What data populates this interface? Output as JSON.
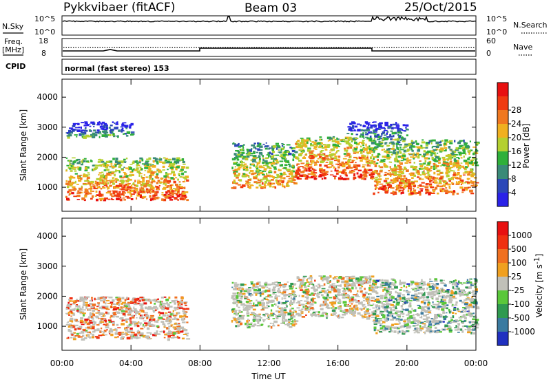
{
  "header": {
    "station": "Pykkvibaer (fitACF)",
    "beam": "Beam 03",
    "date": "25/Oct/2015"
  },
  "strips": {
    "nsky_label": "N.Sky",
    "nsky_ticks": [
      "10^5",
      "10^0"
    ],
    "nsearch_label": "N.Search",
    "nsearch_ticks": [
      "10^5",
      "10^0"
    ],
    "freq_label_1": "Freq.",
    "freq_label_2": "[MHz]",
    "freq_ticks": [
      "18",
      "8"
    ],
    "nave_label": "Nave",
    "nave_ticks": [
      "60",
      "0"
    ],
    "cpid_label": "CPID",
    "cpid_value": "normal (fast stereo) 153"
  },
  "chart_data": [
    {
      "type": "heatmap",
      "title": "",
      "quantity": "Power",
      "xlabel": "",
      "ylabel": "Slant Range [km]",
      "xlim_hours": [
        0,
        24
      ],
      "ylim_km": [
        200,
        4600
      ],
      "ytick_labels": [
        "1000",
        "2000",
        "3000",
        "4000"
      ],
      "ytick_values": [
        1000,
        2000,
        3000,
        4000
      ],
      "colorbar": {
        "label": "Power [dB]",
        "tick_labels": [
          "4",
          "8",
          "12",
          "16",
          "20",
          "24",
          "28"
        ],
        "colors": [
          "#2a22e8",
          "#2c48b8",
          "#3a8a78",
          "#2fb03a",
          "#b4d030",
          "#f0b020",
          "#f07820",
          "#f03a10",
          "#e81010"
        ]
      },
      "echo_regions": [
        {
          "x": [
            0.2,
            7.2
          ],
          "y": [
            600,
            2000
          ],
          "level": 0.62
        },
        {
          "x": [
            0.2,
            4.0
          ],
          "y": [
            2700,
            3200
          ],
          "level": 0.1
        },
        {
          "x": [
            9.8,
            13.5
          ],
          "y": [
            1000,
            2500
          ],
          "level": 0.48
        },
        {
          "x": [
            13.5,
            18.0
          ],
          "y": [
            1300,
            2700
          ],
          "level": 0.68
        },
        {
          "x": [
            18.0,
            24.0
          ],
          "y": [
            800,
            2600
          ],
          "level": 0.58
        },
        {
          "x": [
            16.5,
            20.0
          ],
          "y": [
            2600,
            3200
          ],
          "level": 0.12
        }
      ]
    },
    {
      "type": "heatmap",
      "title": "",
      "quantity": "Velocity",
      "xlabel": "Time UT",
      "ylabel": "Slant Range [km]",
      "xlim_hours": [
        0,
        24
      ],
      "ylim_km": [
        200,
        4600
      ],
      "xtick_labels": [
        "00:00",
        "04:00",
        "08:00",
        "12:00",
        "16:00",
        "20:00",
        "00:00"
      ],
      "xtick_hours": [
        0,
        4,
        8,
        12,
        16,
        20,
        24
      ],
      "ytick_labels": [
        "1000",
        "2000",
        "3000",
        "4000"
      ],
      "ytick_values": [
        1000,
        2000,
        3000,
        4000
      ],
      "colorbar": {
        "label": "Velocity [m s",
        "label_sup": "-1",
        "label_end": "]",
        "tick_labels": [
          "1000",
          "500",
          "100",
          "25",
          "-25",
          "-100",
          "-500",
          "-1000"
        ],
        "colors": [
          "#2030c0",
          "#3a7aa0",
          "#2f9a50",
          "#5ac83a",
          "#c0c0b8",
          "#f0a020",
          "#f07020",
          "#f03010",
          "#e81010"
        ]
      },
      "echo_regions": [
        {
          "x": [
            0.2,
            7.2
          ],
          "y": [
            600,
            2000
          ],
          "level": 0.7
        },
        {
          "x": [
            9.8,
            13.5
          ],
          "y": [
            1000,
            2500
          ],
          "level": 0.45
        },
        {
          "x": [
            13.5,
            18.0
          ],
          "y": [
            1300,
            2700
          ],
          "level": 0.55
        },
        {
          "x": [
            18.0,
            24.0
          ],
          "y": [
            800,
            2600
          ],
          "level": 0.35
        }
      ]
    }
  ]
}
